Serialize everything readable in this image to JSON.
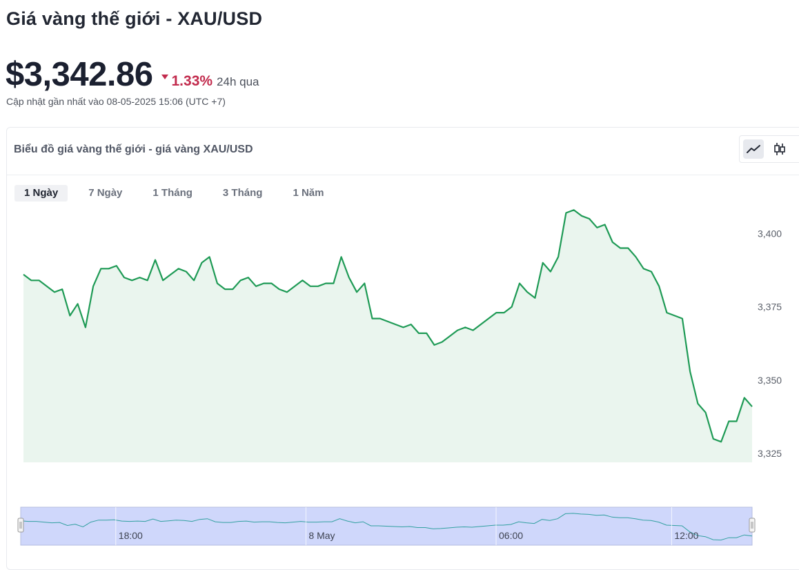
{
  "header": {
    "title": "Giá vàng thế giới - XAU/USD",
    "price": "$3,342.86",
    "change_pct": "1.33%",
    "change_period": "24h qua",
    "updated": "Cập nhật gần nhất vào 08-05-2025 15:06 (UTC +7)"
  },
  "card": {
    "title": "Biểu đồ giá vàng thế giới - giá vàng XAU/USD",
    "chart_types": [
      {
        "name": "line-chart-icon",
        "active": true
      },
      {
        "name": "candlestick-icon",
        "active": false
      }
    ],
    "tabs": [
      {
        "label": "1 Ngày",
        "active": true
      },
      {
        "label": "7 Ngày",
        "active": false
      },
      {
        "label": "1 Tháng",
        "active": false
      },
      {
        "label": "3 Tháng",
        "active": false
      },
      {
        "label": "1 Năm",
        "active": false
      }
    ]
  },
  "colors": {
    "line": "#1e9a55",
    "area": "#eaf5ee",
    "negative": "#c22b4d",
    "navigator_fill": "#cfd7fb",
    "navigator_line": "#31a0a0"
  },
  "chart_data": {
    "type": "area",
    "title": "",
    "xlabel": "",
    "ylabel": "",
    "ylim": [
      3322,
      3409
    ],
    "yticks": [
      3325,
      3350,
      3375,
      3400
    ],
    "ytick_labels": [
      "3,325",
      "3,350",
      "3,375",
      "3,400"
    ],
    "navigator_x_labels": [
      "18:00",
      "8 May",
      "06:00",
      "12:00"
    ],
    "navigator_x_label_pos": [
      0.13,
      0.39,
      0.65,
      0.89
    ],
    "grid": false,
    "legend": "none",
    "series": [
      {
        "values": [
          3386,
          3384,
          3384,
          3382,
          3380,
          3381,
          3372,
          3376,
          3368,
          3382,
          3388,
          3388,
          3389,
          3385,
          3384,
          3385,
          3384,
          3391,
          3384,
          3386,
          3388,
          3387,
          3384,
          3390,
          3392,
          3383,
          3381,
          3381,
          3384,
          3385,
          3382,
          3383,
          3383,
          3381,
          3380,
          3382,
          3384,
          3382,
          3382,
          3383,
          3383,
          3392,
          3385,
          3380,
          3383,
          3371,
          3371,
          3370,
          3369,
          3368,
          3369,
          3366,
          3366,
          3362,
          3363,
          3365,
          3367,
          3368,
          3367,
          3369,
          3371,
          3373,
          3373,
          3375,
          3383,
          3380,
          3378,
          3390,
          3387,
          3392,
          3407,
          3408,
          3406,
          3405,
          3402,
          3403,
          3397,
          3395,
          3395,
          3392,
          3388,
          3387,
          3382,
          3373,
          3372,
          3371,
          3353,
          3342,
          3339,
          3330,
          3329,
          3336,
          3336,
          3344,
          3341
        ]
      }
    ]
  }
}
